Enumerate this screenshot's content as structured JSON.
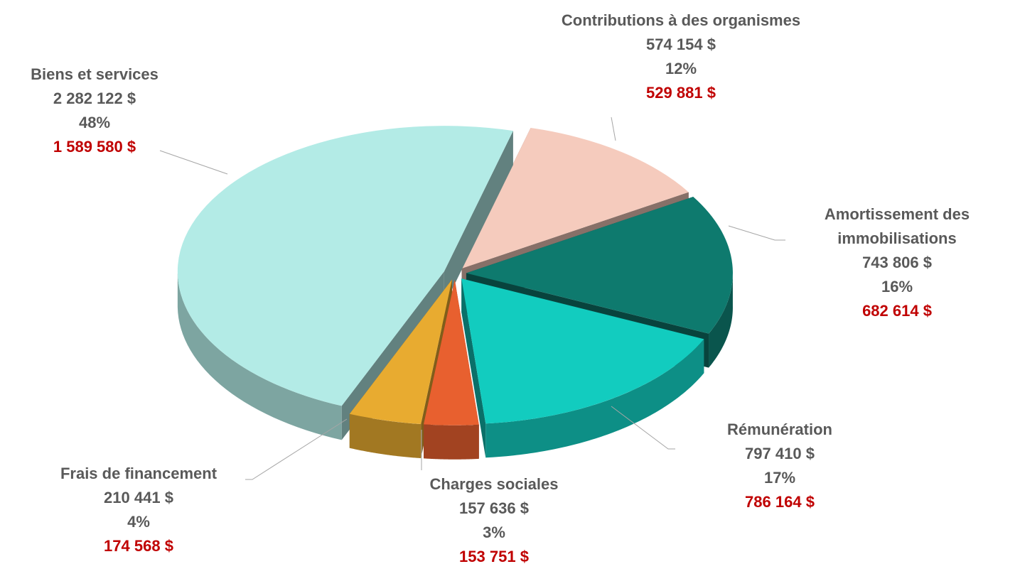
{
  "chart_data": {
    "type": "pie",
    "categories": [
      "Biens et services",
      "Contributions à des organismes",
      "Amortissement des immobilisations",
      "Rémunération",
      "Charges sociales",
      "Frais de financement"
    ],
    "values": [
      2282122,
      574154,
      743806,
      797410,
      157636,
      210441
    ],
    "value_labels": [
      "2 282 122  $",
      "574 154  $",
      "743 806  $",
      "797 410  $",
      "157 636  $",
      "210 441  $"
    ],
    "percent_labels": [
      "48%",
      "12%",
      "16%",
      "17%",
      "3%",
      "4%"
    ],
    "previous_values": [
      1589580,
      529881,
      682614,
      786164,
      153751,
      174568
    ],
    "previous_value_labels": [
      "1 589 580  $",
      "529 881  $",
      "682 614  $",
      "786 164  $",
      "153 751  $",
      "174 568  $"
    ],
    "colors": [
      "#b3ebe6",
      "#f5cbbd",
      "#0e7a6e",
      "#12ccbf",
      "#e8602f",
      "#e8ab30"
    ]
  }
}
